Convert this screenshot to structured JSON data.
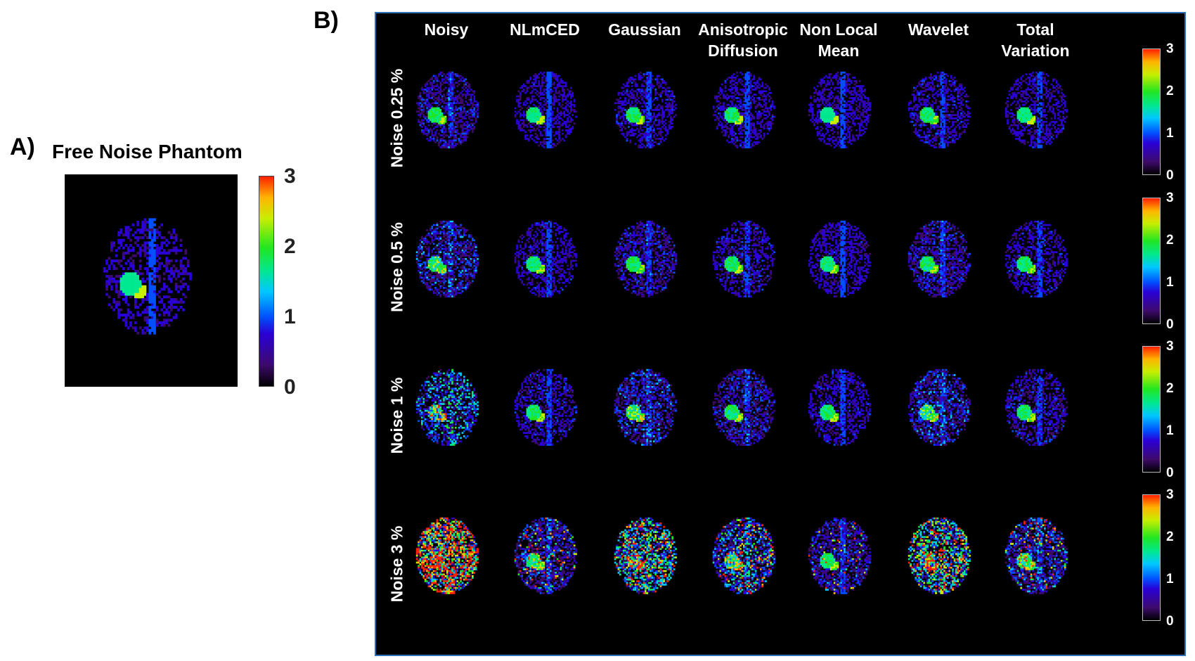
{
  "panel_a": {
    "letter": "A)",
    "title": "Free Noise Phantom",
    "colorbar_ticks": [
      "3",
      "2",
      "1",
      "0"
    ]
  },
  "panel_b": {
    "letter": "B)",
    "columns": [
      [
        "Noisy"
      ],
      [
        "NLmCED"
      ],
      [
        "Gaussian"
      ],
      [
        "Anisotropic",
        "Diffusion"
      ],
      [
        "Non Local",
        "Mean"
      ],
      [
        "Wavelet"
      ],
      [
        "Total",
        "Variation"
      ]
    ],
    "rows": [
      {
        "label": "Noise 0.25 %",
        "level": 0.25
      },
      {
        "label": "Noise 0.5 %",
        "level": 0.5
      },
      {
        "label": "Noise 1 %",
        "level": 1
      },
      {
        "label": "Noise 3 %",
        "level": 3
      }
    ],
    "colorbar_ticks": [
      "3",
      "2",
      "1",
      "0"
    ]
  },
  "colors": {
    "background": "#000000",
    "panel_border": "#2f6fb3",
    "colormap": [
      "#000000",
      "#3d0a6b",
      "#2a00d6",
      "#0050ff",
      "#00c8ff",
      "#00e890",
      "#22e622",
      "#c8ee00",
      "#ffb400",
      "#ff2000"
    ]
  }
}
